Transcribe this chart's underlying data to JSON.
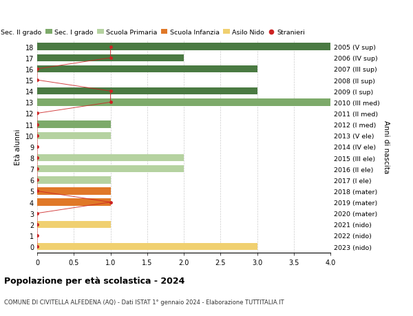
{
  "ages": [
    18,
    17,
    16,
    15,
    14,
    13,
    12,
    11,
    10,
    9,
    8,
    7,
    6,
    5,
    4,
    3,
    2,
    1,
    0
  ],
  "years": [
    "2005 (V sup)",
    "2006 (IV sup)",
    "2007 (III sup)",
    "2008 (II sup)",
    "2009 (I sup)",
    "2010 (III med)",
    "2011 (II med)",
    "2012 (I med)",
    "2013 (V ele)",
    "2014 (IV ele)",
    "2015 (III ele)",
    "2016 (II ele)",
    "2017 (I ele)",
    "2018 (mater)",
    "2019 (mater)",
    "2020 (mater)",
    "2021 (nido)",
    "2022 (nido)",
    "2023 (nido)"
  ],
  "bar_values": [
    4.0,
    2.0,
    3.0,
    0.0,
    3.0,
    4.0,
    0.0,
    1.0,
    1.0,
    0.0,
    2.0,
    2.0,
    1.0,
    1.0,
    1.0,
    0.0,
    1.0,
    0.0,
    3.0
  ],
  "bar_colors": [
    "#4a7a42",
    "#4a7a42",
    "#4a7a42",
    "#4a7a42",
    "#4a7a42",
    "#7daa6a",
    "#7daa6a",
    "#7daa6a",
    "#b5d2a0",
    "#b5d2a0",
    "#b5d2a0",
    "#b5d2a0",
    "#b5d2a0",
    "#e07828",
    "#e07828",
    "#e07828",
    "#f0d070",
    "#f0d070",
    "#f0d070"
  ],
  "stranieri_x": [
    1,
    1,
    0,
    0,
    1,
    1,
    0,
    0,
    0,
    0,
    0,
    0,
    0,
    0,
    1,
    0,
    0,
    0,
    0
  ],
  "legend_labels": [
    "Sec. II grado",
    "Sec. I grado",
    "Scuola Primaria",
    "Scuola Infanzia",
    "Asilo Nido",
    "Stranieri"
  ],
  "legend_colors": [
    "#4a7a42",
    "#7daa6a",
    "#b5d2a0",
    "#e07828",
    "#f0d070",
    "#cc2222"
  ],
  "title": "Popolazione per età scolastica - 2024",
  "subtitle": "COMUNE DI CIVITELLA ALFEDENA (AQ) - Dati ISTAT 1° gennaio 2024 - Elaborazione TUTTITALIA.IT",
  "ylabel_left": "Età alunni",
  "ylabel_right": "Anni di nascita",
  "xlim": [
    0,
    4.0
  ],
  "xticks": [
    0,
    0.5,
    1.0,
    1.5,
    2.0,
    2.5,
    3.0,
    3.5,
    4.0
  ],
  "bg_color": "#ffffff",
  "plot_bg": "#ffffff",
  "grid_color": "#cccccc",
  "bar_height": 0.65
}
